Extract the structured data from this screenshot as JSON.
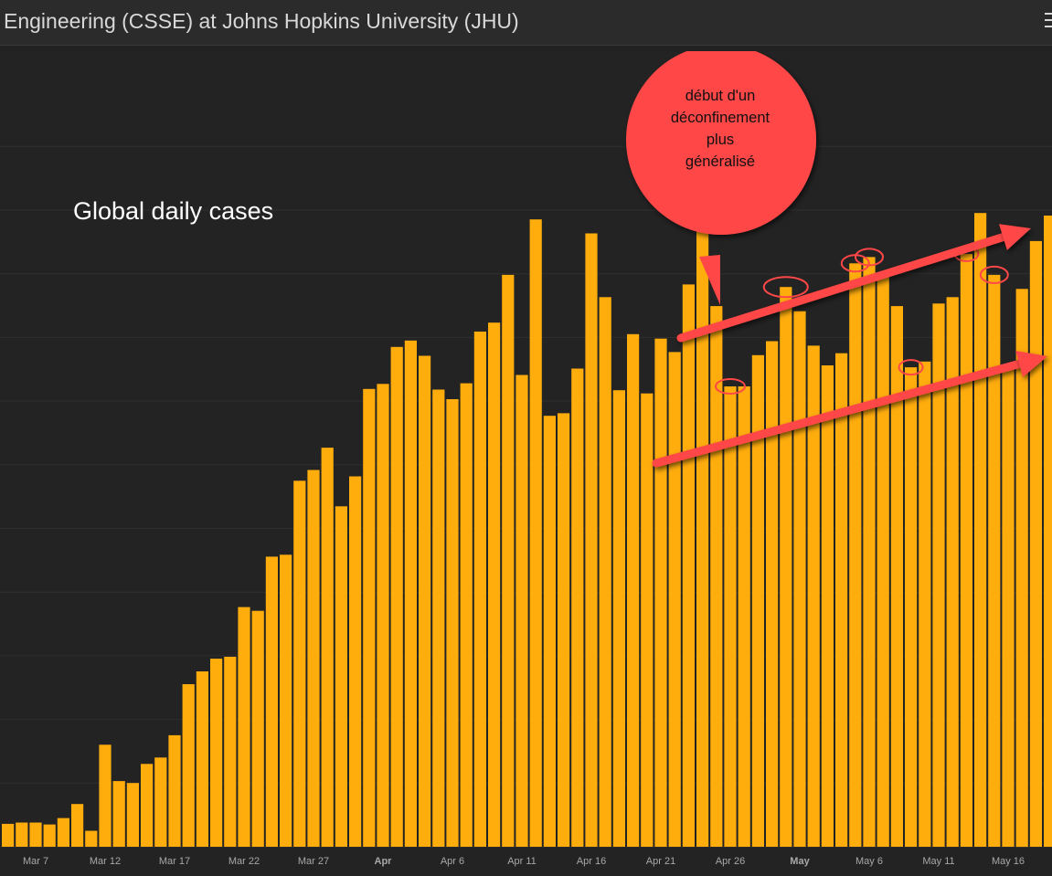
{
  "header": {
    "title": "Engineering (CSSE) at Johns Hopkins University (JHU)"
  },
  "annotation": {
    "lines": [
      "début d'un",
      "déconfinement",
      "plus",
      "généralisé"
    ]
  },
  "colors": {
    "bar": "#ffad0d",
    "background": "#232323",
    "annotation": "#ff4747"
  },
  "chart_data": {
    "type": "bar",
    "title": "Global daily cases",
    "xlabel": "",
    "ylabel": "",
    "grid": true,
    "ylim": [
      0,
      100
    ],
    "x_tick_labels": [
      {
        "label": "Mar 7",
        "index": 2,
        "bold": false
      },
      {
        "label": "Mar 12",
        "index": 7,
        "bold": false
      },
      {
        "label": "Mar 17",
        "index": 12,
        "bold": false
      },
      {
        "label": "Mar 22",
        "index": 17,
        "bold": false
      },
      {
        "label": "Mar 27",
        "index": 22,
        "bold": false
      },
      {
        "label": "Apr",
        "index": 27,
        "bold": true
      },
      {
        "label": "Apr 6",
        "index": 32,
        "bold": false
      },
      {
        "label": "Apr 11",
        "index": 37,
        "bold": false
      },
      {
        "label": "Apr 16",
        "index": 42,
        "bold": false
      },
      {
        "label": "Apr 21",
        "index": 47,
        "bold": false
      },
      {
        "label": "Apr 26",
        "index": 52,
        "bold": false
      },
      {
        "label": "May",
        "index": 57,
        "bold": true
      },
      {
        "label": "May 6",
        "index": 62,
        "bold": false
      },
      {
        "label": "May 11",
        "index": 67,
        "bold": false
      },
      {
        "label": "May 16",
        "index": 72,
        "bold": false
      }
    ],
    "values": [
      3.6,
      3.8,
      3.8,
      3.5,
      4.5,
      6.7,
      2.5,
      16.0,
      10.3,
      10.0,
      13.0,
      14.0,
      17.5,
      25.5,
      27.5,
      29.5,
      29.8,
      37.6,
      37.0,
      45.5,
      45.8,
      57.4,
      59.1,
      62.6,
      53.4,
      58.1,
      71.8,
      72.6,
      78.4,
      79.4,
      77.0,
      71.7,
      70.2,
      72.7,
      80.8,
      82.2,
      89.7,
      74.0,
      98.4,
      67.6,
      68.0,
      75.0,
      96.2,
      86.2,
      71.6,
      80.4,
      71.1,
      79.7,
      77.6,
      88.2,
      97.7,
      84.8,
      72.2,
      72.2,
      77.1,
      79.3,
      87.8,
      84.0,
      78.6,
      75.5,
      77.4,
      91.5,
      92.5,
      90.0,
      84.8,
      75.2,
      76.1,
      85.2,
      86.2,
      93.0,
      99.4,
      89.7,
      75.0,
      87.5,
      95.0,
      99.0
    ]
  }
}
